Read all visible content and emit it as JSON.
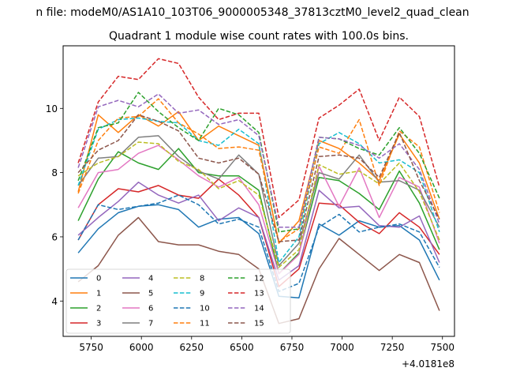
{
  "suptitle": "n file: modeM0/AS1A10_103T06_9000005348_37813cztM0_level2_quad_clean",
  "chart_data": {
    "type": "line",
    "title": "Quadrant 1 module wise count rates with 100.0s bins.",
    "xlabel": "",
    "ylabel": "",
    "x_offset_label": "+4.0181e8",
    "xlim": [
      5610,
      7560
    ],
    "ylim": [
      2.9,
      11.95
    ],
    "x_ticks": [
      5750,
      6000,
      6250,
      6500,
      6750,
      7000,
      7250,
      7500
    ],
    "x_tick_labels": [
      "5750",
      "6000",
      "6250",
      "6500",
      "6750",
      "7000",
      "7250",
      "7500"
    ],
    "y_ticks": [
      4,
      6,
      8,
      10
    ],
    "y_tick_labels": [
      "4",
      "6",
      "8",
      "10"
    ],
    "grid": false,
    "legend_placement": "lower-left",
    "x": [
      5685,
      5785,
      5885,
      5985,
      6085,
      6185,
      6285,
      6385,
      6485,
      6585,
      6685,
      6785,
      6885,
      6985,
      7085,
      7185,
      7285,
      7385,
      7485
    ],
    "series": [
      {
        "name": "0",
        "color": "#1f77b4",
        "dash": "solid",
        "values": [
          5.5,
          6.25,
          6.75,
          6.95,
          7.0,
          6.85,
          6.3,
          6.55,
          6.6,
          6.1,
          4.15,
          4.1,
          6.4,
          6.05,
          6.5,
          6.3,
          6.35,
          5.9,
          4.65
        ]
      },
      {
        "name": "1",
        "color": "#ff7f0e",
        "dash": "solid",
        "values": [
          7.4,
          9.8,
          9.25,
          9.8,
          9.45,
          9.9,
          9.0,
          9.45,
          9.15,
          8.85,
          5.8,
          6.5,
          9.0,
          8.75,
          8.3,
          7.75,
          9.2,
          8.3,
          6.55
        ]
      },
      {
        "name": "2",
        "color": "#2ca02c",
        "dash": "solid",
        "values": [
          6.5,
          7.8,
          8.65,
          8.3,
          8.1,
          8.75,
          8.0,
          7.9,
          7.9,
          7.45,
          4.85,
          5.5,
          7.85,
          7.75,
          7.35,
          6.85,
          8.05,
          7.05,
          5.6
        ]
      },
      {
        "name": "3",
        "color": "#d62728",
        "dash": "solid",
        "values": [
          5.9,
          7.0,
          7.5,
          7.4,
          7.6,
          7.3,
          7.2,
          7.8,
          7.3,
          6.6,
          4.45,
          5.0,
          7.05,
          7.0,
          6.45,
          6.1,
          6.75,
          6.3,
          5.45
        ]
      },
      {
        "name": "4",
        "color": "#9467bd",
        "dash": "solid",
        "values": [
          6.05,
          6.6,
          7.1,
          7.7,
          7.3,
          7.05,
          7.3,
          6.5,
          6.9,
          6.6,
          4.65,
          5.1,
          7.45,
          6.9,
          6.95,
          6.35,
          6.3,
          6.65,
          5.2
        ]
      },
      {
        "name": "5",
        "color": "#8c564b",
        "dash": "solid",
        "values": [
          4.6,
          5.1,
          6.05,
          6.6,
          5.85,
          5.75,
          5.75,
          5.55,
          5.45,
          5.0,
          3.3,
          3.45,
          5.0,
          5.95,
          5.45,
          4.95,
          5.45,
          5.2,
          3.7
        ]
      },
      {
        "name": "6",
        "color": "#e377c2",
        "dash": "solid",
        "values": [
          6.9,
          8.0,
          8.1,
          8.6,
          8.85,
          8.4,
          7.9,
          7.55,
          7.85,
          7.0,
          4.85,
          5.45,
          8.2,
          6.95,
          8.15,
          6.6,
          7.85,
          7.55,
          5.8
        ]
      },
      {
        "name": "7",
        "color": "#7f7f7f",
        "dash": "solid",
        "values": [
          7.6,
          8.45,
          8.5,
          9.1,
          9.15,
          8.5,
          8.05,
          7.8,
          8.55,
          7.95,
          5.1,
          5.8,
          8.0,
          7.8,
          8.55,
          7.7,
          7.75,
          7.45,
          6.3
        ]
      },
      {
        "name": "8",
        "color": "#bcbd22",
        "dash": "dashed",
        "values": [
          7.9,
          8.3,
          8.5,
          8.95,
          8.9,
          8.35,
          8.1,
          7.5,
          7.75,
          7.3,
          5.05,
          5.6,
          8.25,
          7.95,
          8.05,
          7.65,
          8.3,
          7.4,
          5.9
        ]
      },
      {
        "name": "9",
        "color": "#17becf",
        "dash": "dashed",
        "values": [
          7.6,
          9.35,
          9.65,
          9.7,
          9.6,
          9.55,
          9.0,
          8.85,
          9.35,
          8.9,
          5.2,
          6.0,
          8.9,
          9.25,
          8.9,
          8.3,
          8.4,
          8.0,
          6.15
        ]
      },
      {
        "name": "10",
        "color": "#1f77b4",
        "dash": "dashed",
        "values": [
          5.9,
          7.0,
          6.85,
          6.95,
          7.05,
          7.3,
          7.0,
          6.4,
          6.55,
          6.3,
          4.3,
          4.55,
          6.3,
          6.7,
          6.15,
          6.3,
          6.4,
          6.15,
          5.05
        ]
      },
      {
        "name": "11",
        "color": "#ff7f0e",
        "dash": "dashed",
        "values": [
          7.35,
          9.0,
          9.7,
          9.75,
          10.3,
          9.55,
          9.2,
          8.75,
          8.8,
          8.7,
          5.85,
          6.25,
          8.8,
          8.6,
          9.65,
          7.6,
          9.3,
          8.8,
          6.75
        ]
      },
      {
        "name": "12",
        "color": "#2ca02c",
        "dash": "dashed",
        "values": [
          7.75,
          9.4,
          9.55,
          10.5,
          9.9,
          9.4,
          9.0,
          10.0,
          9.8,
          9.25,
          6.15,
          6.25,
          9.1,
          9.05,
          8.75,
          8.55,
          9.4,
          8.6,
          7.2
        ]
      },
      {
        "name": "13",
        "color": "#d62728",
        "dash": "dashed",
        "values": [
          8.3,
          10.2,
          11.0,
          10.9,
          11.55,
          11.4,
          10.35,
          9.65,
          9.85,
          9.85,
          6.6,
          7.15,
          9.7,
          10.1,
          10.6,
          9.0,
          10.35,
          9.75,
          7.55
        ]
      },
      {
        "name": "14",
        "color": "#9467bd",
        "dash": "dashed",
        "values": [
          8.15,
          10.05,
          10.25,
          10.05,
          10.45,
          9.85,
          9.95,
          9.5,
          9.65,
          9.15,
          6.3,
          6.3,
          9.1,
          9.05,
          8.85,
          8.45,
          8.9,
          8.1,
          6.4
        ]
      },
      {
        "name": "15",
        "color": "#8c564b",
        "dash": "dashed",
        "values": [
          8.0,
          8.7,
          9.0,
          9.8,
          9.6,
          9.3,
          8.45,
          8.3,
          8.45,
          7.95,
          5.85,
          5.9,
          8.5,
          8.55,
          8.45,
          7.85,
          9.25,
          7.75,
          6.55
        ]
      }
    ]
  }
}
